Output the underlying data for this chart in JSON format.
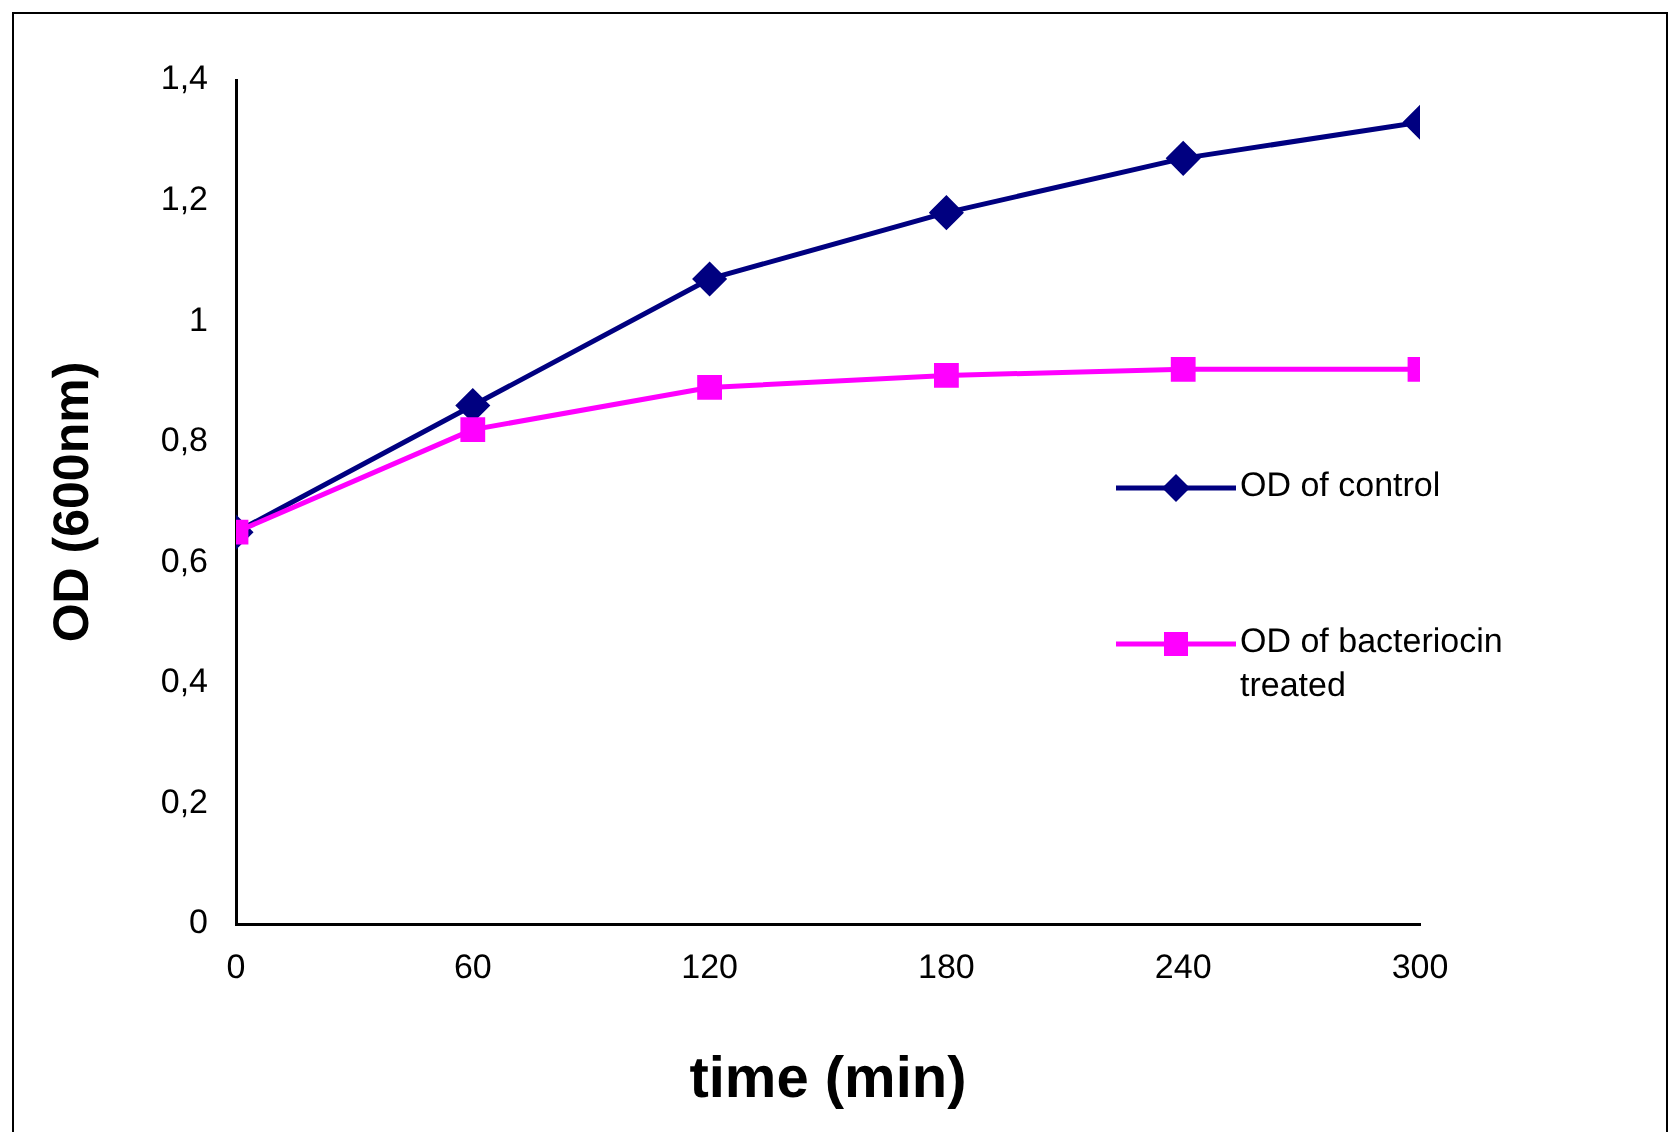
{
  "chart_data": {
    "type": "line",
    "xlabel": "time (min)",
    "ylabel": "OD (600nm)",
    "x": [
      0,
      60,
      120,
      180,
      240,
      300
    ],
    "xlim": [
      0,
      300
    ],
    "xticks": [
      0,
      60,
      120,
      180,
      240,
      300
    ],
    "ylim": [
      0,
      1.4
    ],
    "yticks": [
      0,
      {
        "value": 0.2,
        "label": "0,2"
      },
      {
        "value": 0.4,
        "label": "0,4"
      },
      {
        "value": 0.6,
        "label": "0,6"
      },
      {
        "value": 0.8,
        "label": "0,8"
      },
      1,
      {
        "value": 1.2,
        "label": "1,2"
      },
      {
        "value": 1.4,
        "label": "1,4"
      }
    ],
    "grid": false,
    "legend": "right",
    "line_style": "solid",
    "series": [
      {
        "name": "OD of control",
        "color": "#000080",
        "marker": "diamond",
        "values": [
          0.65,
          0.86,
          1.07,
          1.18,
          1.27,
          1.33
        ]
      },
      {
        "name": "OD of bacteriocin treated",
        "color": "#ff00ff",
        "marker": "square",
        "values": [
          0.65,
          0.82,
          0.89,
          0.91,
          0.92,
          0.92
        ]
      }
    ]
  }
}
